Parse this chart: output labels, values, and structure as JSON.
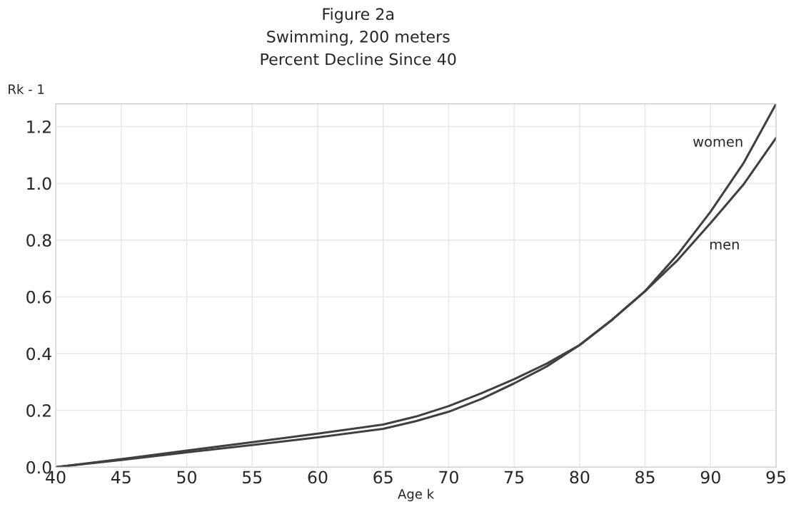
{
  "chart_data": {
    "type": "line",
    "title": "Figure 2a\nSwimming, 200 meters\nPercent Decline Since 40",
    "xlabel": "Age k",
    "ylabel": "Rk - 1",
    "x": [
      40,
      45,
      50,
      55,
      60,
      65,
      67.5,
      70,
      72.5,
      75,
      77.5,
      80,
      82.5,
      85,
      87.5,
      90,
      92.5,
      95
    ],
    "series": [
      {
        "name": "women",
        "color": "#404040",
        "values": [
          0,
          0.028,
          0.058,
          0.088,
          0.118,
          0.15,
          0.178,
          0.215,
          0.26,
          0.31,
          0.365,
          0.43,
          0.52,
          0.62,
          0.75,
          0.9,
          1.07,
          1.28
        ]
      },
      {
        "name": "men",
        "color": "#404040",
        "values": [
          0,
          0.025,
          0.052,
          0.078,
          0.105,
          0.135,
          0.162,
          0.195,
          0.24,
          0.295,
          0.355,
          0.43,
          0.52,
          0.62,
          0.73,
          0.86,
          0.995,
          1.16
        ]
      }
    ],
    "xlim": [
      40,
      95
    ],
    "xticks": [
      40,
      45,
      50,
      55,
      60,
      65,
      70,
      75,
      80,
      85,
      90,
      95
    ],
    "ylim": [
      0,
      1.28
    ],
    "yticks": [
      {
        "value": 0,
        "label": "0.0"
      },
      0.2,
      0.4,
      0.6,
      0.8,
      {
        "value": 1,
        "label": "1.0"
      },
      1.2
    ],
    "grid": true,
    "legend": false,
    "marker": "none",
    "line_style": "solid"
  }
}
